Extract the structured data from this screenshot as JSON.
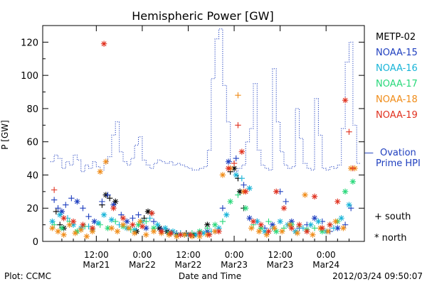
{
  "chart_data": {
    "type": "scatter",
    "title": "Hemispheric Power [GW]",
    "ylabel": "P [GW]",
    "xlabel": "Date and Time",
    "ylim": [
      0,
      130
    ],
    "yticks": [
      0,
      20,
      40,
      60,
      80,
      100,
      120
    ],
    "xlim": [
      -2,
      82
    ],
    "x_unit": "hours since 2012-03-21 00:00",
    "xticks": [
      {
        "x": 12,
        "time": "12:00",
        "date": "Mar21"
      },
      {
        "x": 24,
        "time": "0:00",
        "date": "Mar22"
      },
      {
        "x": 36,
        "time": "12:00",
        "date": "Mar22"
      },
      {
        "x": 48,
        "time": "0:00",
        "date": "Mar23"
      },
      {
        "x": 60,
        "time": "12:00",
        "date": "Mar23"
      },
      {
        "x": 72,
        "time": "0:00",
        "date": "Mar24"
      }
    ],
    "legend": {
      "placement": "right",
      "entries": [
        {
          "label": "METP-02",
          "color": "#000000"
        },
        {
          "label": "NOAA-15",
          "color": "#1f3fbf"
        },
        {
          "label": "NOAA-16",
          "color": "#18b4d8"
        },
        {
          "label": "NOAA-17",
          "color": "#28d87a"
        },
        {
          "label": "NOAA-18",
          "color": "#f08c18"
        },
        {
          "label": "NOAA-19",
          "color": "#e0301e"
        }
      ],
      "ovation_label": "Ovation Prime HPI",
      "ovation_dash": "—",
      "markers": [
        {
          "symbol": "+",
          "label": "south"
        },
        {
          "symbol": "*",
          "label": "north"
        }
      ]
    },
    "ovation_series": {
      "name": "Ovation Prime HPI",
      "color": "#1f3fbf",
      "x": [
        0,
        1,
        2,
        3,
        4,
        5,
        6,
        7,
        8,
        9,
        10,
        11,
        12,
        13,
        14,
        15,
        16,
        17,
        18,
        19,
        20,
        21,
        22,
        23,
        24,
        25,
        26,
        27,
        28,
        29,
        30,
        31,
        32,
        33,
        34,
        35,
        36,
        37,
        38,
        39,
        40,
        41,
        42,
        43,
        44,
        45,
        46,
        47,
        48,
        49,
        50,
        51,
        52,
        53,
        54,
        55,
        56,
        57,
        58,
        59,
        60,
        61,
        62,
        63,
        64,
        65,
        66,
        67,
        68,
        69,
        70,
        71,
        72,
        73,
        74,
        75,
        76,
        77,
        78,
        79,
        80
      ],
      "y": [
        48,
        52,
        50,
        44,
        48,
        46,
        52,
        49,
        42,
        46,
        44,
        48,
        45,
        43,
        47,
        51,
        64,
        72,
        54,
        48,
        46,
        50,
        58,
        63,
        49,
        46,
        44,
        47,
        49,
        48,
        47,
        48,
        46,
        47,
        46,
        45,
        44,
        43,
        43,
        44,
        45,
        55,
        98,
        122,
        128,
        94,
        72,
        48,
        42,
        44,
        46,
        60,
        68,
        95,
        55,
        46,
        44,
        43,
        104,
        72,
        54,
        46,
        44,
        45,
        80,
        62,
        47,
        44,
        43,
        86,
        64,
        44,
        43,
        45,
        44,
        46,
        68,
        108,
        120,
        70,
        47
      ]
    },
    "satellite_series": [
      {
        "name": "METP-02",
        "color": "#000000",
        "x": [
          1.5,
          2.5,
          3.5,
          13.5,
          14.5,
          15.5,
          17.0,
          22.5,
          24.5,
          25.5,
          26.5,
          28.5,
          30.5,
          31.5,
          33.0,
          35.5,
          36.5,
          37.5,
          41.0,
          47.0,
          48.0,
          49.0,
          49.5,
          50.5
        ],
        "y": [
          18,
          10,
          8,
          22,
          28,
          26,
          24,
          6,
          14,
          18,
          17,
          8,
          6,
          5,
          4,
          5,
          4,
          4,
          10,
          42,
          44,
          38,
          30,
          20
        ],
        "marker": [
          "+",
          "+",
          "*",
          "+",
          "*",
          "+",
          "*",
          "*",
          "+",
          "*",
          "+",
          "*",
          "*",
          "+",
          "*",
          "+",
          "+",
          "*",
          "*",
          "+",
          "*",
          "+",
          "*",
          "+"
        ]
      },
      {
        "name": "NOAA-15",
        "color": "#1f3fbf",
        "x": [
          1.0,
          2.0,
          3.0,
          4.0,
          5.5,
          7.0,
          8.5,
          10.0,
          11.5,
          13.5,
          15.0,
          16.5,
          18.5,
          20.0,
          21.5,
          23.0,
          25.0,
          27.0,
          29.0,
          31.0,
          33.0,
          35.0,
          37.0,
          39.0,
          41.0,
          43.0,
          45.0,
          46.5,
          48.5,
          50.5,
          52.0,
          54.0,
          56.0,
          58.0,
          60.0,
          61.5,
          63.0,
          65.0,
          67.0,
          69.0,
          71.0,
          73.0,
          75.0,
          77.0,
          78.5
        ],
        "y": [
          25,
          20,
          18,
          22,
          26,
          24,
          20,
          15,
          12,
          24,
          28,
          22,
          16,
          12,
          14,
          16,
          8,
          12,
          7,
          6,
          5,
          4,
          4,
          5,
          6,
          6,
          20,
          48,
          50,
          34,
          14,
          12,
          8,
          10,
          30,
          24,
          12,
          8,
          10,
          14,
          12,
          6,
          8,
          10,
          20
        ],
        "marker": [
          "+",
          "+",
          "*",
          "+",
          "+",
          "*",
          "+",
          "+",
          "*",
          "+",
          "+",
          "*",
          "+",
          "*",
          "+",
          "+",
          "*",
          "+",
          "*",
          "+",
          "+",
          "*",
          "+",
          "+",
          "*",
          "+",
          "+",
          "*",
          "+",
          "+",
          "*",
          "+",
          "+",
          "*",
          "+",
          "+",
          "*",
          "+",
          "+",
          "*",
          "+",
          "+",
          "*",
          "+",
          "+"
        ]
      },
      {
        "name": "NOAA-16",
        "color": "#18b4d8",
        "x": [
          0.5,
          2.5,
          4.5,
          6.0,
          8.0,
          10.0,
          12.5,
          14.0,
          16.0,
          18.0,
          20.0,
          22.0,
          24.0,
          26.0,
          28.0,
          30.0,
          32.0,
          34.0,
          36.0,
          38.0,
          40.0,
          42.0,
          44.0,
          46.0,
          48.5,
          50.0,
          52.0,
          54.0,
          56.0,
          58.0,
          60.0,
          62.0,
          64.0,
          66.0,
          68.0,
          70.0,
          72.0,
          74.0,
          76.0,
          78.0
        ],
        "y": [
          12,
          16,
          14,
          10,
          8,
          9,
          11,
          16,
          13,
          10,
          8,
          7,
          12,
          14,
          10,
          8,
          6,
          5,
          4,
          4,
          5,
          6,
          8,
          16,
          40,
          38,
          32,
          12,
          6,
          8,
          12,
          10,
          6,
          8,
          10,
          12,
          6,
          8,
          14,
          22
        ],
        "marker": [
          "*",
          "*",
          "+",
          "*",
          "*",
          "+",
          "*",
          "*",
          "*",
          "+",
          "*",
          "*",
          "*",
          "+",
          "*",
          "*",
          "*",
          "+",
          "*",
          "*",
          "*",
          "+",
          "*",
          "*",
          "*",
          "+",
          "*",
          "*",
          "*",
          "+",
          "*",
          "*",
          "*",
          "+",
          "*",
          "*",
          "*",
          "+",
          "*",
          "*"
        ]
      },
      {
        "name": "NOAA-17",
        "color": "#28d87a",
        "x": [
          1.0,
          3.0,
          5.0,
          7.0,
          9.0,
          11.0,
          13.0,
          15.0,
          17.0,
          19.0,
          21.0,
          23.0,
          25.0,
          27.0,
          29.0,
          31.0,
          33.0,
          35.0,
          37.0,
          39.0,
          41.0,
          43.0,
          45.0,
          47.0,
          49.0,
          51.0,
          53.0,
          55.0,
          57.0,
          59.0,
          61.0,
          63.0,
          65.0,
          67.0,
          69.0,
          71.0,
          73.0,
          75.0,
          77.0,
          79.0
        ],
        "y": [
          10,
          8,
          12,
          6,
          9,
          7,
          10,
          8,
          12,
          9,
          7,
          10,
          12,
          8,
          6,
          5,
          4,
          4,
          5,
          6,
          8,
          10,
          12,
          24,
          28,
          20,
          10,
          8,
          12,
          6,
          8,
          10,
          9,
          7,
          8,
          6,
          10,
          12,
          30,
          36
        ],
        "marker": [
          "+",
          "*",
          "+",
          "*",
          "+",
          "*",
          "+",
          "*",
          "+",
          "*",
          "+",
          "*",
          "+",
          "*",
          "+",
          "*",
          "+",
          "*",
          "+",
          "*",
          "+",
          "*",
          "+",
          "*",
          "+",
          "*",
          "+",
          "*",
          "+",
          "*",
          "+",
          "*",
          "+",
          "*",
          "+",
          "*",
          "+",
          "*",
          "*",
          "*"
        ]
      },
      {
        "name": "NOAA-18",
        "color": "#f08c18",
        "x": [
          0.5,
          2.0,
          3.5,
          5.0,
          6.5,
          8.0,
          9.5,
          11.0,
          13.0,
          14.5,
          16.0,
          17.5,
          19.0,
          20.5,
          22.0,
          23.5,
          25.0,
          27.0,
          29.0,
          31.0,
          33.0,
          35.0,
          37.0,
          39.0,
          41.0,
          43.0,
          45.0,
          47.0,
          49.0,
          50.5,
          52.5,
          54.5,
          56.5,
          58.5,
          60.5,
          62.5,
          64.5,
          66.5,
          68.5,
          70.5,
          72.5,
          74.5,
          76.5,
          78.5,
          79.5
        ],
        "y": [
          8,
          6,
          4,
          10,
          5,
          7,
          3,
          6,
          42,
          48,
          8,
          6,
          10,
          8,
          5,
          12,
          4,
          6,
          5,
          4,
          3,
          4,
          3,
          3,
          4,
          6,
          40,
          44,
          88,
          30,
          8,
          6,
          4,
          8,
          6,
          10,
          5,
          28,
          4,
          8,
          6,
          12,
          8,
          44,
          44
        ],
        "marker": [
          "*",
          "*",
          "*",
          "*",
          "*",
          "*",
          "*",
          "*",
          "*",
          "*",
          "*",
          "*",
          "*",
          "*",
          "*",
          "*",
          "*",
          "*",
          "*",
          "*",
          "*",
          "*",
          "*",
          "*",
          "*",
          "*",
          "*",
          "*",
          "+",
          "*",
          "*",
          "*",
          "*",
          "*",
          "*",
          "*",
          "*",
          "*",
          "*",
          "*",
          "*",
          "*",
          "*",
          "*",
          "*"
        ]
      },
      {
        "name": "NOAA-19",
        "color": "#e0301e",
        "x": [
          1.0,
          3.5,
          6.0,
          8.5,
          11.0,
          14.0,
          16.5,
          19.0,
          21.5,
          24.0,
          26.5,
          29.0,
          31.5,
          34.0,
          36.5,
          39.0,
          41.5,
          44.0,
          46.5,
          48.0,
          49.0,
          50.0,
          51.0,
          53.0,
          55.0,
          57.0,
          59.0,
          61.0,
          63.0,
          65.0,
          67.0,
          69.0,
          71.0,
          73.0,
          75.0,
          77.0,
          78.0,
          79.0
        ],
        "y": [
          31,
          14,
          12,
          10,
          8,
          119,
          20,
          14,
          10,
          9,
          17,
          6,
          5,
          4,
          4,
          5,
          4,
          6,
          44,
          47,
          70,
          54,
          30,
          12,
          10,
          6,
          30,
          20,
          8,
          10,
          6,
          27,
          8,
          10,
          24,
          85,
          66,
          44
        ],
        "marker": [
          "+",
          "*",
          "*",
          "*",
          "*",
          "*",
          "*",
          "*",
          "*",
          "*",
          "*",
          "*",
          "*",
          "*",
          "*",
          "*",
          "*",
          "*",
          "*",
          "+",
          "+",
          "*",
          "*",
          "*",
          "*",
          "*",
          "*",
          "*",
          "*",
          "*",
          "*",
          "*",
          "*",
          "*",
          "*",
          "*",
          "+",
          "+"
        ]
      }
    ]
  },
  "footer": {
    "plot_by": "Plot: CCMC",
    "timestamp": "2012/03/24 09:50:07"
  }
}
